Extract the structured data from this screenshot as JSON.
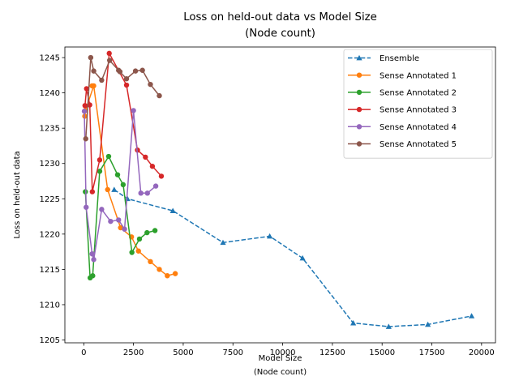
{
  "chart_data": {
    "type": "line",
    "title": [
      "Loss on held-out data vs Model Size",
      "(Node count)"
    ],
    "xlabel": [
      "Model Size",
      "(Node count)"
    ],
    "ylabel": "Loss on held-out data",
    "xlim": [
      -950,
      20700
    ],
    "ylim": [
      1204.6,
      1246.5
    ],
    "xticks": [
      0,
      2500,
      5000,
      7500,
      10000,
      12500,
      15000,
      17500,
      20000
    ],
    "yticks": [
      1205,
      1210,
      1215,
      1220,
      1225,
      1230,
      1235,
      1240,
      1245
    ],
    "grid": false,
    "legend_position": "top-right",
    "series": [
      {
        "name": "Ensemble",
        "color": "#1f77b4",
        "marker": "triangle",
        "dashed": true,
        "x": [
          1530,
          2200,
          4480,
          7000,
          9350,
          11000,
          13550,
          15330,
          17300,
          19500
        ],
        "y": [
          1226.3,
          1225.0,
          1223.3,
          1218.8,
          1219.7,
          1216.6,
          1207.4,
          1206.9,
          1207.2,
          1208.4
        ]
      },
      {
        "name": "Sense Annotated 1",
        "color": "#ff7f0e",
        "marker": "circle",
        "dashed": false,
        "x": [
          50,
          80,
          500,
          1200,
          1850,
          2400,
          2750,
          3350,
          3800,
          4200,
          4600
        ],
        "y": [
          1236.7,
          1237.5,
          1241.0,
          1226.3,
          1220.9,
          1219.6,
          1217.6,
          1216.1,
          1215.0,
          1214.1,
          1214.4
        ],
        "extra_points": [
          {
            "x": 420,
            "y": 1241.0
          }
        ]
      },
      {
        "name": "Sense Annotated 2",
        "color": "#2ca02c",
        "marker": "circle",
        "dashed": false,
        "x": [
          80,
          320,
          450,
          800,
          1250,
          1700,
          1980,
          2420,
          2800,
          3180,
          3580
        ],
        "y": [
          1226.0,
          1213.8,
          1214.1,
          1228.9,
          1231.0,
          1228.4,
          1227.0,
          1217.4,
          1219.3,
          1220.2,
          1220.5
        ]
      },
      {
        "name": "Sense Annotated 3",
        "color": "#d62728",
        "marker": "circle",
        "dashed": false,
        "x": [
          60,
          140,
          300,
          430,
          800,
          1280,
          2150,
          2700,
          3100,
          3450,
          3900
        ],
        "y": [
          1238.2,
          1240.6,
          1238.3,
          1226.0,
          1230.5,
          1245.6,
          1241.1,
          1231.9,
          1230.9,
          1229.6,
          1228.2
        ]
      },
      {
        "name": "Sense Annotated 4",
        "color": "#9467bd",
        "marker": "circle",
        "dashed": false,
        "x": [
          30,
          120,
          420,
          500,
          900,
          1350,
          1750,
          2050,
          2500,
          2870,
          3200,
          3620
        ],
        "y": [
          1237.4,
          1223.8,
          1217.2,
          1216.4,
          1223.5,
          1221.8,
          1222.0,
          1220.7,
          1237.5,
          1225.8,
          1225.8,
          1226.8
        ]
      },
      {
        "name": "Sense Annotated 5",
        "color": "#8c564b",
        "marker": "circle",
        "dashed": false,
        "x": [
          100,
          350,
          500,
          900,
          1300,
          1750,
          2150,
          2600,
          2950,
          3350,
          3800
        ],
        "y": [
          1233.5,
          1245.0,
          1243.1,
          1241.8,
          1244.6,
          1243.2,
          1242.0,
          1243.1,
          1243.2,
          1241.2,
          1239.6
        ],
        "extra_points": [
          {
            "x": 1820,
            "y": 1243.0
          }
        ]
      }
    ]
  }
}
